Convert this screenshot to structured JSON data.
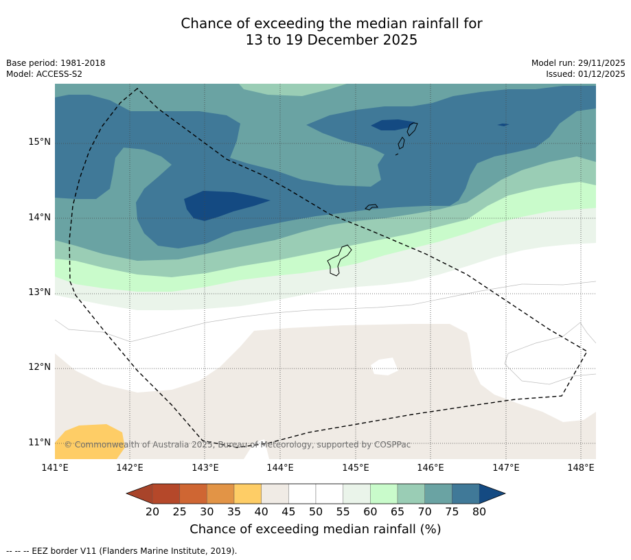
{
  "title": {
    "line1": "Chance of exceeding the median rainfall for",
    "line2": "13 to 19 December 2025"
  },
  "meta": {
    "base_period": "Base period: 1981-2018",
    "model": "Model: ACCESS-S2",
    "model_run": "Model run: 29/11/2025",
    "issued": "Issued: 01/12/2025"
  },
  "map": {
    "lon_range": [
      141.0,
      148.2
    ],
    "lat_range": [
      10.8,
      15.8
    ],
    "x_ticks": [
      "141°E",
      "142°E",
      "143°E",
      "144°E",
      "145°E",
      "146°E",
      "147°E",
      "148°E"
    ],
    "y_ticks": [
      "15°N",
      "14°N",
      "13°N",
      "12°N",
      "11°N"
    ],
    "copyright": "© Commonwealth of Australia 2025, Bureau of Meteorology, supported by COSPPac"
  },
  "colorbar": {
    "labels": [
      "20",
      "25",
      "30",
      "35",
      "40",
      "45",
      "50",
      "55",
      "60",
      "65",
      "70",
      "75",
      "80"
    ],
    "under_color": "#a8442a",
    "over_color": "#144a82",
    "colors": [
      "#b5482a",
      "#cf6633",
      "#e29446",
      "#fecd66",
      "#f0ebe5",
      "#ffffff",
      "#ffffff",
      "#eaf4ea",
      "#c9fbcb",
      "#9acdb5",
      "#6aa3a3",
      "#407998"
    ],
    "title": "Chance of exceeding median rainfall (%)"
  },
  "legend": {
    "eez": "--  --  -- EEZ border V11 (Flanders Marine Institute, 2019)."
  }
}
